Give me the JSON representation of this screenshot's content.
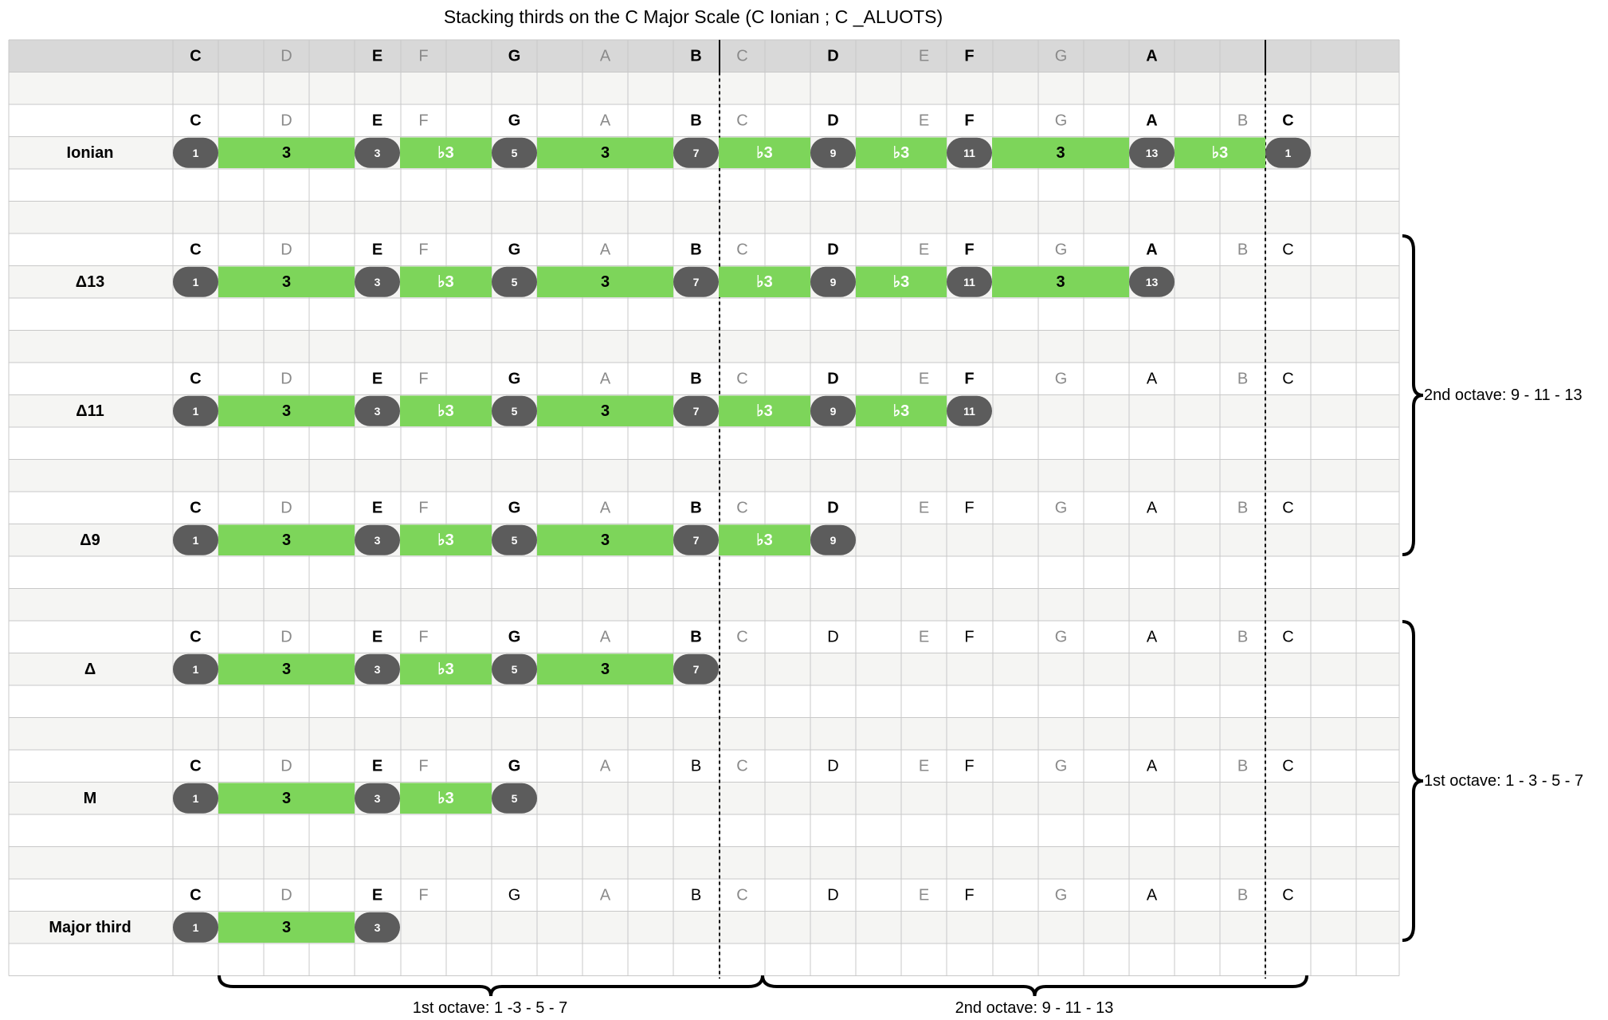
{
  "title": "Stacking thirds on the C Major Scale  (C Ionian ; C _ALUOTS)",
  "header_notes": [
    "C",
    "D",
    "E",
    "F",
    "G",
    "A",
    "B",
    "C",
    "D",
    "E",
    "F",
    "G",
    "A"
  ],
  "header_styles": [
    "bold",
    "dim",
    "bold",
    "dim",
    "bold",
    "dim",
    "bold",
    "dim",
    "bold",
    "dim",
    "bold",
    "dim",
    "bold"
  ],
  "rows": [
    {
      "label": "Ionian",
      "note_letters": [
        "C",
        "D",
        "E",
        "F",
        "G",
        "A",
        "B",
        "C",
        "D",
        "E",
        "F",
        "G",
        "A",
        "B",
        "C"
      ],
      "note_styles": [
        "bold",
        "dim",
        "bold",
        "dim",
        "bold",
        "dim",
        "bold",
        "dim",
        "bold",
        "dim",
        "bold",
        "dim",
        "bold",
        "dim",
        "bold"
      ],
      "degrees": [
        "1",
        "3",
        "5",
        "7",
        "9",
        "11",
        "13",
        "1"
      ],
      "intervals": [
        "3",
        "♭3",
        "3",
        "♭3",
        "♭3",
        "3",
        "♭3"
      ]
    },
    {
      "label": "Δ13",
      "note_letters": [
        "C",
        "D",
        "E",
        "F",
        "G",
        "A",
        "B",
        "C",
        "D",
        "E",
        "F",
        "G",
        "A",
        "B",
        "C"
      ],
      "note_styles": [
        "bold",
        "dim",
        "bold",
        "dim",
        "bold",
        "dim",
        "bold",
        "dim",
        "bold",
        "dim",
        "bold",
        "dim",
        "bold",
        "dim",
        "plain"
      ],
      "degrees": [
        "1",
        "3",
        "5",
        "7",
        "9",
        "11",
        "13"
      ],
      "intervals": [
        "3",
        "♭3",
        "3",
        "♭3",
        "♭3",
        "3"
      ]
    },
    {
      "label": "Δ11",
      "note_letters": [
        "C",
        "D",
        "E",
        "F",
        "G",
        "A",
        "B",
        "C",
        "D",
        "E",
        "F",
        "G",
        "A",
        "B",
        "C"
      ],
      "note_styles": [
        "bold",
        "dim",
        "bold",
        "dim",
        "bold",
        "dim",
        "bold",
        "dim",
        "bold",
        "dim",
        "bold",
        "dim",
        "plain",
        "dim",
        "plain"
      ],
      "degrees": [
        "1",
        "3",
        "5",
        "7",
        "9",
        "11"
      ],
      "intervals": [
        "3",
        "♭3",
        "3",
        "♭3",
        "♭3"
      ]
    },
    {
      "label": "Δ9",
      "note_letters": [
        "C",
        "D",
        "E",
        "F",
        "G",
        "A",
        "B",
        "C",
        "D",
        "E",
        "F",
        "G",
        "A",
        "B",
        "C"
      ],
      "note_styles": [
        "bold",
        "dim",
        "bold",
        "dim",
        "bold",
        "dim",
        "bold",
        "dim",
        "bold",
        "dim",
        "plain",
        "dim",
        "plain",
        "dim",
        "plain"
      ],
      "degrees": [
        "1",
        "3",
        "5",
        "7",
        "9"
      ],
      "intervals": [
        "3",
        "♭3",
        "3",
        "♭3"
      ]
    },
    {
      "label": "Δ",
      "note_letters": [
        "C",
        "D",
        "E",
        "F",
        "G",
        "A",
        "B",
        "C",
        "D",
        "E",
        "F",
        "G",
        "A",
        "B",
        "C"
      ],
      "note_styles": [
        "bold",
        "dim",
        "bold",
        "dim",
        "bold",
        "dim",
        "bold",
        "dim",
        "plain",
        "dim",
        "plain",
        "dim",
        "plain",
        "dim",
        "plain"
      ],
      "degrees": [
        "1",
        "3",
        "5",
        "7"
      ],
      "intervals": [
        "3",
        "♭3",
        "3"
      ]
    },
    {
      "label": "M",
      "note_letters": [
        "C",
        "D",
        "E",
        "F",
        "G",
        "A",
        "B",
        "C",
        "D",
        "E",
        "F",
        "G",
        "A",
        "B",
        "C"
      ],
      "note_styles": [
        "bold",
        "dim",
        "bold",
        "dim",
        "bold",
        "dim",
        "plain",
        "dim",
        "plain",
        "dim",
        "plain",
        "dim",
        "plain",
        "dim",
        "plain"
      ],
      "degrees": [
        "1",
        "3",
        "5"
      ],
      "intervals": [
        "3",
        "♭3"
      ]
    },
    {
      "label": "Major third",
      "note_letters": [
        "C",
        "D",
        "E",
        "F",
        "G",
        "A",
        "B",
        "C",
        "D",
        "E",
        "F",
        "G",
        "A",
        "B",
        "C"
      ],
      "note_styles": [
        "bold",
        "dim",
        "bold",
        "dim",
        "plain",
        "dim",
        "plain",
        "dim",
        "plain",
        "dim",
        "plain",
        "dim",
        "plain",
        "dim",
        "plain"
      ],
      "degrees": [
        "1",
        "3"
      ],
      "intervals": [
        "3"
      ]
    }
  ],
  "side_braces": [
    "2nd octave: 9 - 11 - 13",
    "1st octave: 1 - 3 - 5 - 7"
  ],
  "bottom_braces": [
    "1st octave: 1 -3 - 5 - 7",
    "2nd octave: 9 - 11 - 13"
  ],
  "colors": {
    "interval_fill": "#7dd55a",
    "degree_fill": "#5c5c5c",
    "header_fill": "#d8d8d8",
    "stripe_fill": "#f5f5f3",
    "grid_line": "#c8c8c8",
    "dim_text": "#8a8a8a"
  }
}
